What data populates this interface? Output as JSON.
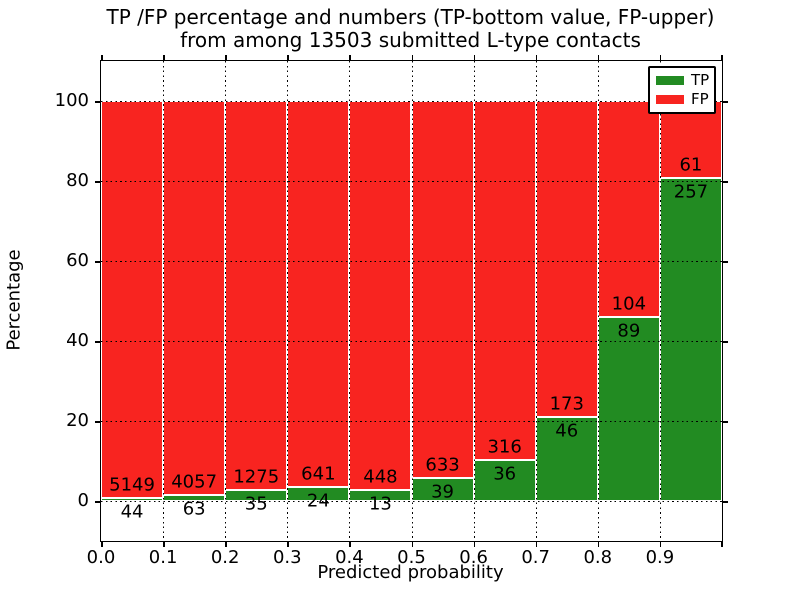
{
  "title": {
    "line1": "TP /FP percentage and numbers (TP-bottom value, FP-upper)",
    "line2": "from among 13503 submitted L-type contacts"
  },
  "axes": {
    "xlabel": "Predicted probability",
    "ylabel": "Percentage",
    "xtick_labels": [
      "0.0",
      "0.1",
      "0.2",
      "0.3",
      "0.4",
      "0.5",
      "0.6",
      "0.7",
      "0.8",
      "0.9"
    ],
    "ytick_labels": [
      "0",
      "20",
      "40",
      "60",
      "80",
      "100"
    ],
    "ytick_values": [
      0,
      20,
      40,
      60,
      80,
      100
    ],
    "xlim": [
      0.0,
      1.0
    ],
    "ylim": [
      -10,
      110
    ],
    "grid_style": "dotted"
  },
  "legend": {
    "entries": [
      {
        "label": "TP",
        "color": "#228b22"
      },
      {
        "label": "FP",
        "color": "#f82420"
      }
    ]
  },
  "colors": {
    "tp": "#228b22",
    "fp": "#f82420",
    "background": "#ffffff",
    "text": "#000000",
    "bar_edge": "#ffffff",
    "grid": "#000000"
  },
  "chart_data": {
    "type": "bar",
    "stacked": true,
    "normalized_total_percent": 100,
    "title": "TP /FP percentage and numbers (TP-bottom value, FP-upper) from among 13503 submitted L-type contacts",
    "xlabel": "Predicted probability",
    "ylabel": "Percentage",
    "total_contacts": 13503,
    "bin_starts": [
      0.0,
      0.1,
      0.2,
      0.3,
      0.4,
      0.5,
      0.6,
      0.7,
      0.8,
      0.9
    ],
    "bin_width": 0.1,
    "xlim": [
      0.0,
      1.0
    ],
    "ylim": [
      -10,
      110
    ],
    "legend_position": "upper right",
    "grid": true,
    "series": [
      {
        "name": "TP",
        "color": "#228b22",
        "counts": [
          44,
          63,
          35,
          24,
          13,
          39,
          36,
          46,
          89,
          257
        ],
        "percent": [
          0.85,
          1.53,
          2.67,
          3.61,
          2.82,
          5.8,
          10.23,
          21.0,
          46.11,
          80.82
        ]
      },
      {
        "name": "FP",
        "color": "#f82420",
        "counts": [
          5149,
          4057,
          1275,
          641,
          448,
          633,
          316,
          173,
          104,
          61
        ],
        "percent": [
          99.15,
          98.47,
          97.33,
          96.39,
          97.18,
          94.2,
          89.77,
          79.0,
          53.89,
          19.18
        ]
      }
    ]
  }
}
